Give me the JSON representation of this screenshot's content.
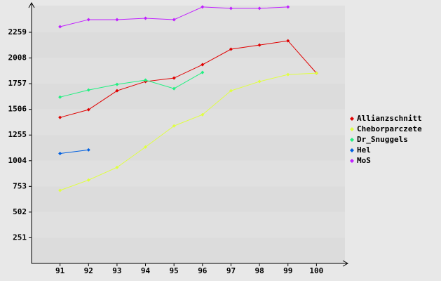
{
  "chart_data": {
    "type": "line",
    "x": [
      91,
      92,
      93,
      94,
      95,
      96,
      97,
      98,
      99,
      100
    ],
    "xlim": [
      90,
      101
    ],
    "xticks": [
      91,
      92,
      93,
      94,
      95,
      96,
      97,
      98,
      99,
      100
    ],
    "ylim": [
      0,
      2520
    ],
    "yticks": [
      251,
      502,
      753,
      1004,
      1255,
      1506,
      1757,
      2008,
      2259
    ],
    "grid": true,
    "legend": "right",
    "series": [
      {
        "name": "Allianzschnitt",
        "color": "#e00000",
        "values": [
          1427,
          1503,
          1688,
          1778,
          1812,
          1943,
          2094,
          2135,
          2176,
          1860
        ]
      },
      {
        "name": "Cheborparczete",
        "color": "#e0ff40",
        "values": [
          714,
          815,
          939,
          1138,
          1344,
          1454,
          1688,
          1778,
          1846,
          1860
        ]
      },
      {
        "name": "Dr_Snuggels",
        "color": "#20f080",
        "values": [
          1626,
          1695,
          1750,
          1792,
          1709,
          1867,
          null,
          null,
          null,
          null
        ]
      },
      {
        "name": "Hel",
        "color": "#0060e0",
        "values": [
          1075,
          1110,
          null,
          null,
          null,
          null,
          null,
          null,
          null,
          null
        ]
      },
      {
        "name": "MoS",
        "color": "#c020ff",
        "values": [
          2314,
          2383,
          2383,
          2396,
          2383,
          2507,
          2493,
          2493,
          2507,
          null
        ]
      }
    ]
  }
}
